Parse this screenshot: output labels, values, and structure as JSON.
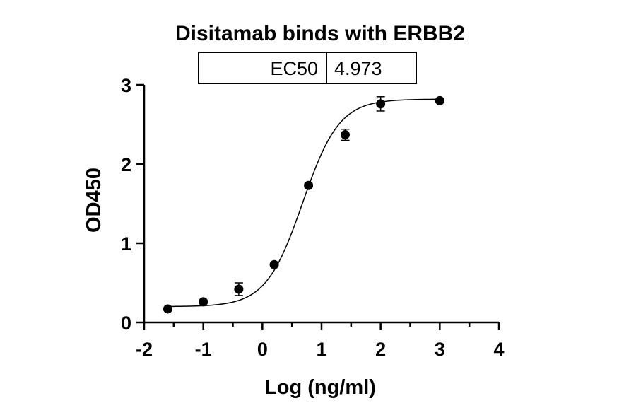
{
  "chart_data": {
    "type": "scatter",
    "title": "Disitamab binds with ERBB2",
    "xlabel": "Log (ng/ml)",
    "ylabel": "OD450",
    "xlim": [
      -2,
      4
    ],
    "ylim": [
      0,
      3
    ],
    "x_ticks": [
      -2,
      -1,
      0,
      1,
      2,
      3,
      4
    ],
    "y_ticks": [
      0,
      1,
      2,
      3
    ],
    "x_tick_labels": [
      "-2",
      "-1",
      "0",
      "1",
      "2",
      "3",
      "4"
    ],
    "y_tick_labels": [
      "0",
      "1",
      "2",
      "3"
    ],
    "grid": false,
    "fit": "4PL sigmoidal curve",
    "points": [
      {
        "x": -1.6,
        "y": 0.17,
        "err": 0.02
      },
      {
        "x": -1.0,
        "y": 0.26,
        "err": 0.02
      },
      {
        "x": -0.4,
        "y": 0.42,
        "err": 0.08
      },
      {
        "x": 0.2,
        "y": 0.73,
        "err": 0.02
      },
      {
        "x": 0.78,
        "y": 1.73,
        "err": 0.02
      },
      {
        "x": 1.4,
        "y": 2.37,
        "err": 0.07
      },
      {
        "x": 2.0,
        "y": 2.76,
        "err": 0.09
      },
      {
        "x": 3.0,
        "y": 2.8,
        "err": 0.02
      }
    ],
    "table": {
      "label": "EC50",
      "value": "4.973"
    },
    "colors": {
      "marker": "#000000",
      "line": "#000000"
    }
  }
}
